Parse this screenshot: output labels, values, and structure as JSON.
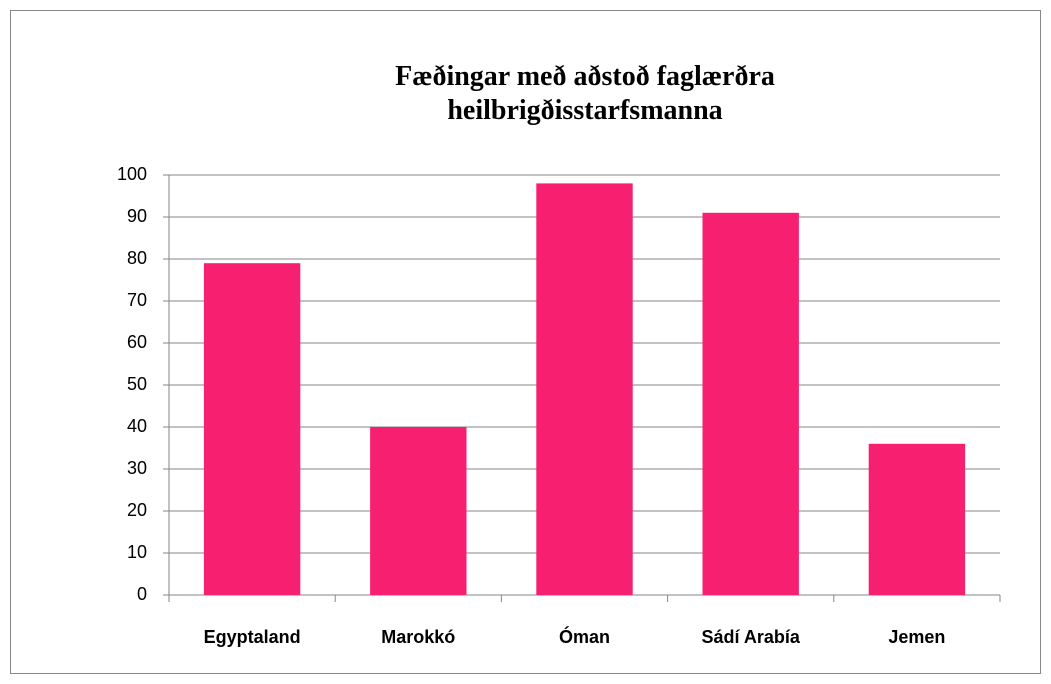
{
  "chart_data": {
    "type": "bar",
    "title": "Fæðingar með aðstoð faglærðra heilbrigðisstarfsmanna",
    "categories": [
      "Egyptaland",
      "Marokkó",
      "Óman",
      "Sádí Arabía",
      "Jemen"
    ],
    "values": [
      79,
      40,
      98,
      91,
      36
    ],
    "color": "#f71f6f",
    "ylim": [
      0,
      100
    ],
    "yticks": [
      0,
      10,
      20,
      30,
      40,
      50,
      60,
      70,
      80,
      90,
      100
    ],
    "grid": true
  }
}
